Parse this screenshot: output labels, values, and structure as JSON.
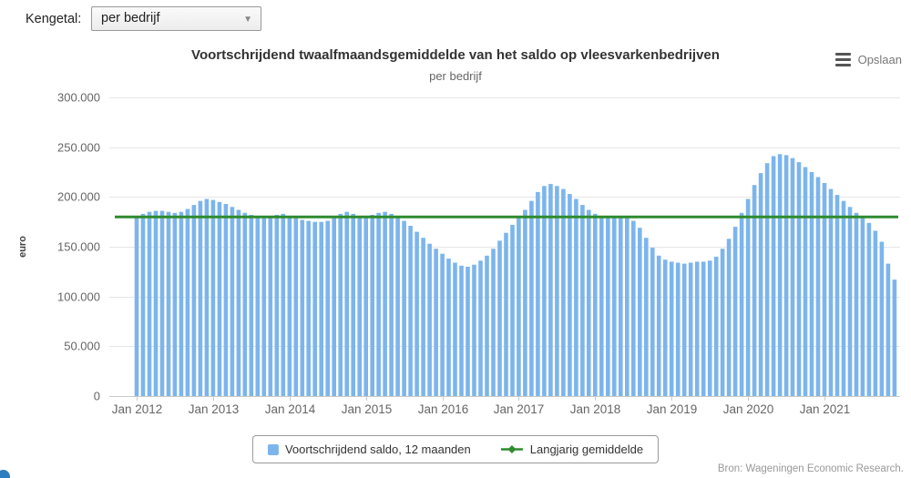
{
  "controls": {
    "label": "Kengetal:",
    "dropdown_value": "per bedrijf"
  },
  "export": {
    "label": "Opslaan"
  },
  "source": "Bron: Wageningen Economic Research.",
  "colors": {
    "bar": "#7cb5ec",
    "line": "#2e8b2e",
    "title": "#333333",
    "subtitle": "#666666",
    "axis_label": "#666666",
    "axis_title": "#444444",
    "grid": "#e6e6e6",
    "axis_line": "#c9c9c9",
    "legend_border": "#999999",
    "source": "#999999"
  },
  "chart_data": {
    "type": "bar",
    "title": "Voortschrijdend twaalfmaandsgemiddelde van het saldo op vleesvarkenbedrijven",
    "subtitle": "per bedrijf",
    "ylabel": "euro",
    "xlabel": "",
    "ylim": [
      0,
      300000
    ],
    "grid": true,
    "legend_position": "bottom",
    "frequency": "monthly",
    "x_range": [
      "Jan 2012",
      "Dec 2021"
    ],
    "x_tick_labels": [
      "Jan 2012",
      "Jan 2013",
      "Jan 2014",
      "Jan 2015",
      "Jan 2016",
      "Jan 2017",
      "Jan 2018",
      "Jan 2019",
      "Jan 2020",
      "Jan 2021"
    ],
    "y_ticks": [
      {
        "value": 0,
        "label": "0"
      },
      {
        "value": 50000,
        "label": "50.000"
      },
      {
        "value": 100000,
        "label": "100.000"
      },
      {
        "value": 150000,
        "label": "150.000"
      },
      {
        "value": 200000,
        "label": "200.000"
      },
      {
        "value": 250000,
        "label": "250.000"
      },
      {
        "value": 300000,
        "label": "300.000"
      }
    ],
    "series": [
      {
        "name": "Voortschrijdend saldo, 12 maanden",
        "type": "column",
        "values": [
          181000,
          183000,
          185000,
          186000,
          186000,
          185000,
          184000,
          185000,
          188000,
          192000,
          196000,
          198000,
          197000,
          195000,
          193000,
          190000,
          187000,
          184000,
          182000,
          180000,
          180000,
          181000,
          182000,
          183000,
          181000,
          179000,
          177000,
          176000,
          175000,
          175000,
          176000,
          179000,
          183000,
          185000,
          183000,
          181000,
          180000,
          182000,
          184000,
          185000,
          183000,
          180000,
          176000,
          171000,
          165000,
          159000,
          153000,
          148000,
          143000,
          138000,
          134000,
          131000,
          130000,
          132000,
          136000,
          141000,
          148000,
          156000,
          164000,
          172000,
          179000,
          187000,
          196000,
          205000,
          211000,
          213000,
          211000,
          208000,
          203000,
          198000,
          192000,
          187000,
          183000,
          181000,
          180000,
          180000,
          181000,
          180000,
          176000,
          169000,
          159000,
          149000,
          141000,
          137000,
          135000,
          134000,
          133000,
          134000,
          135000,
          135000,
          136000,
          140000,
          148000,
          158000,
          170000,
          184000,
          198000,
          212000,
          224000,
          234000,
          241000,
          243000,
          242000,
          239000,
          235000,
          230000,
          225000,
          220000,
          214000,
          208000,
          202000,
          196000,
          190000,
          184000,
          179000,
          174000,
          166000,
          155000,
          133000,
          117000
        ]
      },
      {
        "name": "Langjarig gemiddelde",
        "type": "line",
        "value": 180000
      }
    ]
  }
}
